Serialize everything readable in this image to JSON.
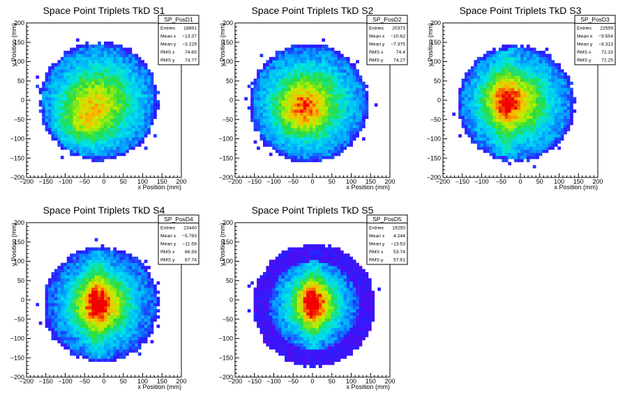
{
  "chart_data": [
    {
      "type": "heatmap",
      "title": "Space Point Triplets TkD S1",
      "xlabel": "x Position (mm)",
      "ylabel": "y Position (mm)",
      "xlim": [
        -200,
        200
      ],
      "ylim": [
        -200,
        200
      ],
      "xticks": [
        -200,
        -150,
        -100,
        -50,
        0,
        50,
        100,
        150,
        200
      ],
      "yticks": [
        -200,
        -150,
        -100,
        -50,
        0,
        50,
        100,
        150,
        200
      ],
      "stats": {
        "name": "SP_PosD1",
        "rows": [
          {
            "label": "Entries",
            "value": "18891"
          },
          {
            "label": "Mean x",
            "value": "-13.37"
          },
          {
            "label": "Mean y",
            "value": "-3.229"
          },
          {
            "label": "RMS x",
            "value": "74.65"
          },
          {
            "label": "RMS y",
            "value": "74.77"
          }
        ]
      },
      "hist": {
        "cx": -13,
        "cy": -3,
        "r": 155,
        "sx": 75,
        "sy": 75,
        "hot": [
          -55,
          -55
        ],
        "band": 0,
        "halo": 0,
        "seed": 11
      }
    },
    {
      "type": "heatmap",
      "title": "Space Point Triplets TkD S2",
      "xlabel": "x Position (mm)",
      "ylabel": "y Position (mm)",
      "xlim": [
        -200,
        200
      ],
      "ylim": [
        -200,
        200
      ],
      "xticks": [
        -200,
        -150,
        -100,
        -50,
        0,
        50,
        100,
        150,
        200
      ],
      "yticks": [
        -200,
        -150,
        -100,
        -50,
        0,
        50,
        100,
        150,
        200
      ],
      "stats": {
        "name": "SP_PosD2",
        "rows": [
          {
            "label": "Entries",
            "value": "20373"
          },
          {
            "label": "Mean x",
            "value": "-10.62"
          },
          {
            "label": "Mean y",
            "value": "-7.375"
          },
          {
            "label": "RMS x",
            "value": "74.4"
          },
          {
            "label": "RMS y",
            "value": "74.27"
          }
        ]
      },
      "hist": {
        "cx": -10,
        "cy": -7,
        "r": 155,
        "sx": 74,
        "sy": 74,
        "hot": [
          -30,
          -30
        ],
        "band": 0,
        "halo": 0,
        "seed": 23
      }
    },
    {
      "type": "heatmap",
      "title": "Space Point Triplets TkD S3",
      "xlabel": "x Position (mm)",
      "ylabel": "y Position (mm)",
      "xlim": [
        -200,
        200
      ],
      "ylim": [
        -200,
        200
      ],
      "xticks": [
        -200,
        -150,
        -100,
        -50,
        0,
        50,
        100,
        150,
        200
      ],
      "yticks": [
        -200,
        -150,
        -100,
        -50,
        0,
        50,
        100,
        150,
        200
      ],
      "stats": {
        "name": "SP_PosD3",
        "rows": [
          {
            "label": "Entries",
            "value": "22559"
          },
          {
            "label": "Mean x",
            "value": "-9.554"
          },
          {
            "label": "Mean y",
            "value": "-8.313"
          },
          {
            "label": "RMS x",
            "value": "72.15"
          },
          {
            "label": "RMS y",
            "value": "72.25"
          }
        ]
      },
      "hist": {
        "cx": -10,
        "cy": -8,
        "r": 152,
        "sx": 72,
        "sy": 72,
        "hot": [
          -40,
          0
        ],
        "band": 1,
        "halo": 0,
        "seed": 37
      }
    },
    {
      "type": "heatmap",
      "title": "Space Point Triplets TkD S4",
      "xlabel": "x Position (mm)",
      "ylabel": "y Position (mm)",
      "xlim": [
        -200,
        200
      ],
      "ylim": [
        -200,
        200
      ],
      "xticks": [
        -200,
        -150,
        -100,
        -50,
        0,
        50,
        100,
        150,
        200
      ],
      "yticks": [
        -200,
        -150,
        -100,
        -50,
        0,
        50,
        100,
        150,
        200
      ],
      "stats": {
        "name": "SP_PosD4",
        "rows": [
          {
            "label": "Entries",
            "value": "23440"
          },
          {
            "label": "Mean x",
            "value": "-5.783"
          },
          {
            "label": "Mean y",
            "value": "-11.58"
          },
          {
            "label": "RMS x",
            "value": "66.59"
          },
          {
            "label": "RMS y",
            "value": "67.74"
          }
        ]
      },
      "hist": {
        "cx": -6,
        "cy": -12,
        "r": 150,
        "sx": 62,
        "sy": 64,
        "hot": [
          -20,
          -10
        ],
        "band": 1,
        "halo": 0,
        "seed": 53
      }
    },
    {
      "type": "heatmap",
      "title": "Space Point Triplets TkD S5",
      "xlabel": "x Position (mm)",
      "ylabel": "y Position (mm)",
      "xlim": [
        -200,
        200
      ],
      "ylim": [
        -200,
        200
      ],
      "xticks": [
        -200,
        -150,
        -100,
        -50,
        0,
        50,
        100,
        150,
        200
      ],
      "yticks": [
        -200,
        -150,
        -100,
        -50,
        0,
        50,
        100,
        150,
        200
      ],
      "stats": {
        "name": "SP_PosD5",
        "rows": [
          {
            "label": "Entries",
            "value": "19250"
          },
          {
            "label": "Mean x",
            "value": "4.244"
          },
          {
            "label": "Mean y",
            "value": "-13.53"
          },
          {
            "label": "RMS x",
            "value": "53.74"
          },
          {
            "label": "RMS y",
            "value": "57.61"
          }
        ]
      },
      "hist": {
        "cx": 4,
        "cy": -14,
        "r": 160,
        "sx": 48,
        "sy": 52,
        "hot": [
          0,
          0
        ],
        "band": 1,
        "halo": 1,
        "seed": 71
      }
    }
  ]
}
